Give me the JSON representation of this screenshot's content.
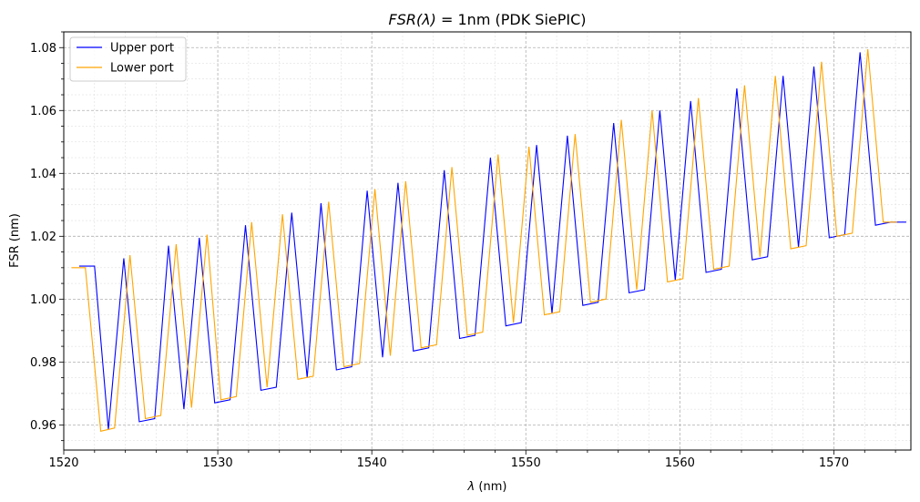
{
  "chart_data": {
    "type": "line",
    "title_math": "FSR(λ)",
    "title_rest": " = 1nm (PDK SiePIC)",
    "xlabel_math": "λ",
    "xlabel_rest": " (nm)",
    "ylabel": "FSR (nm)",
    "xlim": [
      1520,
      1575
    ],
    "ylim": [
      0.952,
      1.085
    ],
    "xticks": [
      1520,
      1530,
      1540,
      1550,
      1560,
      1570
    ],
    "xticklabels": [
      "1520",
      "1530",
      "1540",
      "1550",
      "1560",
      "1570"
    ],
    "yticks": [
      0.96,
      0.98,
      1.0,
      1.02,
      1.04,
      1.06,
      1.08
    ],
    "yticklabels": [
      "0.96",
      "0.98",
      "1.00",
      "1.02",
      "1.04",
      "1.06",
      "1.08"
    ],
    "grid": true,
    "grid_minor": true,
    "legend_position": "top-left",
    "series": [
      {
        "name": "Upper port",
        "color": "#0000ff",
        "x": [
          1521.0,
          1522.0,
          1522.9,
          1523.9,
          1524.9,
          1525.9,
          1526.8,
          1527.8,
          1528.8,
          1529.8,
          1530.8,
          1531.8,
          1532.8,
          1533.8,
          1534.8,
          1535.8,
          1536.7,
          1537.7,
          1538.7,
          1539.7,
          1540.7,
          1541.7,
          1542.7,
          1543.7,
          1544.7,
          1545.7,
          1546.7,
          1547.7,
          1548.7,
          1549.7,
          1550.7,
          1551.7,
          1552.7,
          1553.7,
          1554.7,
          1555.7,
          1556.7,
          1557.7,
          1558.7,
          1559.7,
          1560.7,
          1561.7,
          1562.7,
          1563.7,
          1564.7,
          1565.7,
          1566.7,
          1567.7,
          1568.7,
          1569.7,
          1570.7,
          1571.7,
          1572.7,
          1573.7,
          1574.7
        ],
        "y": [
          1.0105,
          1.0105,
          0.9585,
          1.013,
          0.961,
          0.962,
          1.017,
          0.965,
          1.0195,
          0.967,
          0.968,
          1.0235,
          0.971,
          0.972,
          1.0275,
          0.975,
          1.0305,
          0.9775,
          0.9785,
          1.0345,
          0.9815,
          1.037,
          0.9835,
          0.9845,
          1.041,
          0.9875,
          0.9885,
          1.045,
          0.9915,
          0.9925,
          1.049,
          0.9955,
          1.052,
          0.998,
          0.999,
          1.056,
          1.002,
          1.003,
          1.06,
          1.006,
          1.063,
          1.0085,
          1.0095,
          1.067,
          1.0125,
          1.0135,
          1.071,
          1.0165,
          1.074,
          1.0195,
          1.0205,
          1.0785,
          1.0235,
          1.0245,
          1.0245
        ]
      },
      {
        "name": "Lower port",
        "color": "#ffa500",
        "x": [
          1520.5,
          1521.4,
          1522.4,
          1523.3,
          1524.3,
          1525.3,
          1526.3,
          1527.3,
          1528.3,
          1529.3,
          1530.2,
          1531.2,
          1532.2,
          1533.2,
          1534.2,
          1535.2,
          1536.2,
          1537.2,
          1538.2,
          1539.2,
          1540.2,
          1541.2,
          1542.2,
          1543.2,
          1544.2,
          1545.2,
          1546.2,
          1547.2,
          1548.2,
          1549.2,
          1550.2,
          1551.2,
          1552.2,
          1553.2,
          1554.2,
          1555.2,
          1556.2,
          1557.2,
          1558.2,
          1559.2,
          1560.2,
          1561.2,
          1562.2,
          1563.2,
          1564.2,
          1565.2,
          1566.2,
          1567.2,
          1568.2,
          1569.2,
          1570.2,
          1571.2,
          1572.2,
          1573.2,
          1574.1
        ],
        "y": [
          1.01,
          1.01,
          0.958,
          0.959,
          1.014,
          0.962,
          0.963,
          1.0175,
          0.9655,
          1.0205,
          0.968,
          0.969,
          1.0245,
          0.972,
          1.027,
          0.9745,
          0.9755,
          1.031,
          0.9785,
          0.9795,
          1.035,
          0.982,
          1.0375,
          0.9845,
          0.9855,
          1.042,
          0.9885,
          0.9895,
          1.046,
          0.9925,
          1.0485,
          0.995,
          0.996,
          1.0525,
          0.999,
          1.0,
          1.057,
          1.003,
          1.06,
          1.0055,
          1.0065,
          1.064,
          1.0095,
          1.0105,
          1.068,
          1.0135,
          1.071,
          1.016,
          1.017,
          1.0755,
          1.02,
          1.021,
          1.0795,
          1.0245,
          1.0245
        ]
      }
    ]
  }
}
